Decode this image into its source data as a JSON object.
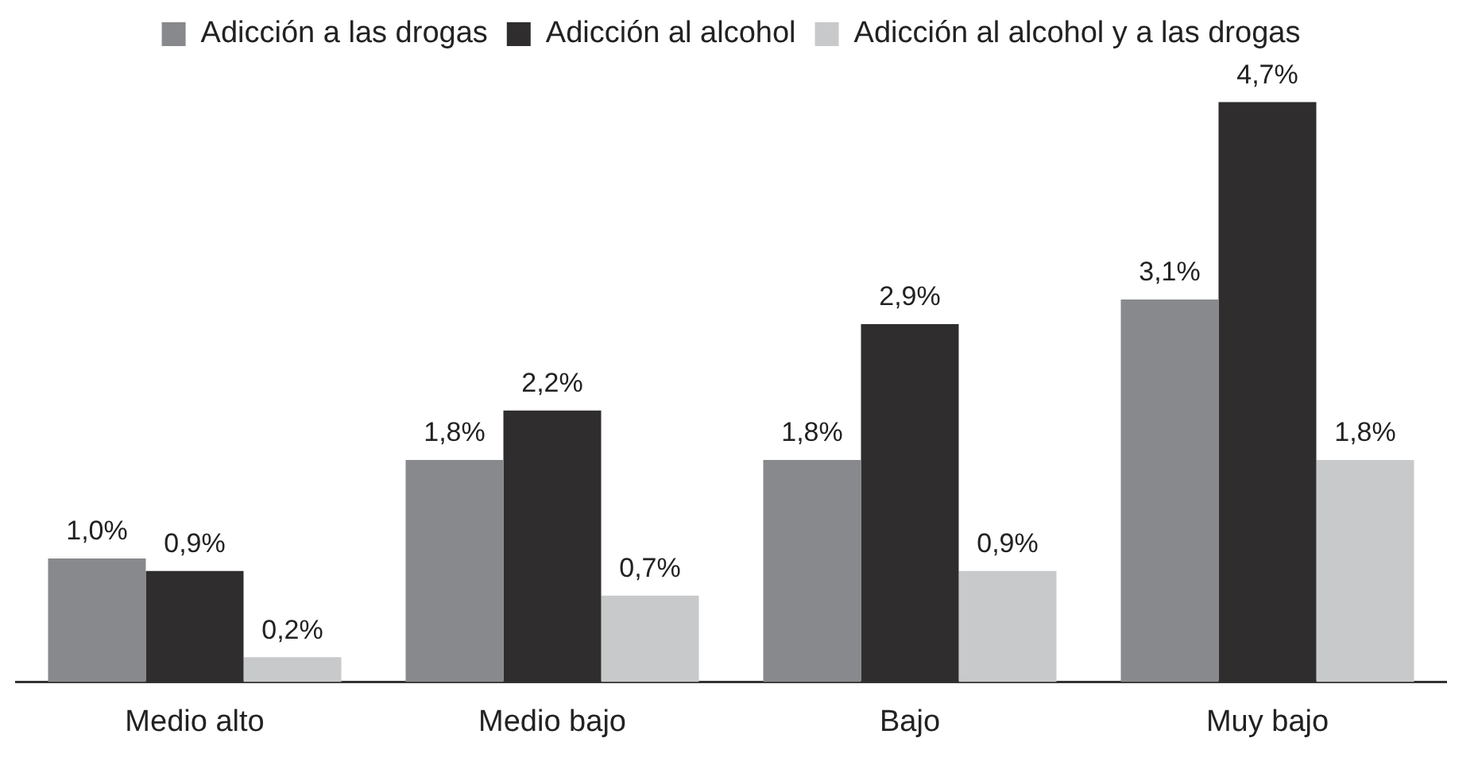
{
  "chart_data": {
    "type": "bar",
    "categories": [
      "Medio alto",
      "Medio bajo",
      "Bajo",
      "Muy bajo"
    ],
    "series": [
      {
        "name": "Adicción a las drogas",
        "color": "#88898c",
        "values": [
          1.0,
          1.8,
          1.8,
          3.1
        ],
        "value_labels": [
          "1,0%",
          "1,8%",
          "1,8%",
          "3,1%"
        ]
      },
      {
        "name": "Adicción al alcohol",
        "color": "#2f2d2e",
        "values": [
          0.9,
          2.2,
          2.9,
          4.7
        ],
        "value_labels": [
          "0,9%",
          "2,2%",
          "2,9%",
          "4,7%"
        ]
      },
      {
        "name": "Adicción al alcohol y a las drogas",
        "color": "#c8c9cb",
        "values": [
          0.2,
          0.7,
          0.9,
          1.8
        ],
        "value_labels": [
          "0,2%",
          "0,7%",
          "0,9%",
          "1,8%"
        ]
      }
    ],
    "legend": "top",
    "grid": false
  }
}
